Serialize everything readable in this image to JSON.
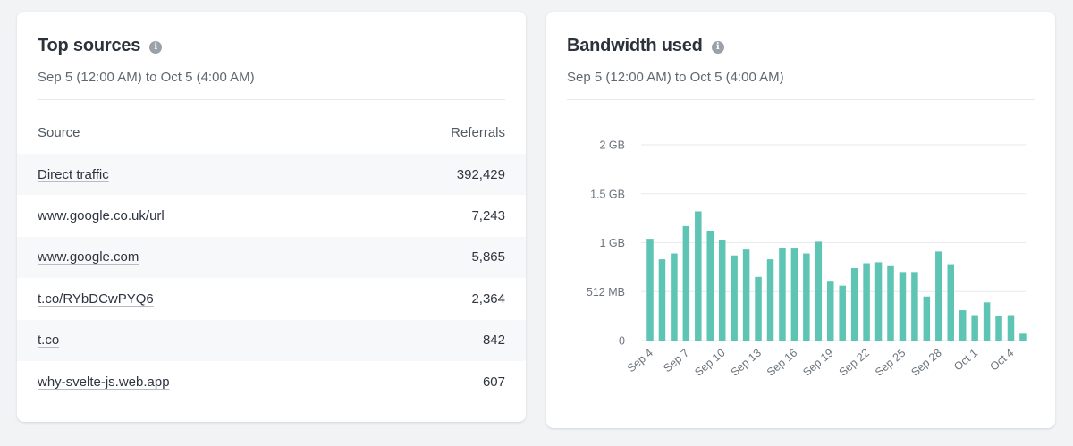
{
  "sources_card": {
    "title": "Top sources",
    "info_icon": "info-icon",
    "date_range": "Sep 5 (12:00 AM) to Oct 5 (4:00 AM)",
    "column_source": "Source",
    "column_referrals": "Referrals",
    "rows": [
      {
        "source": "Direct traffic",
        "referrals": "392,429"
      },
      {
        "source": "www.google.co.uk/url",
        "referrals": "7,243"
      },
      {
        "source": "www.google.com",
        "referrals": "5,865"
      },
      {
        "source": "t.co/RYbDCwPYQ6",
        "referrals": "2,364"
      },
      {
        "source": "t.co",
        "referrals": "842"
      },
      {
        "source": "why-svelte-js.web.app",
        "referrals": "607"
      }
    ]
  },
  "bandwidth_card": {
    "title": "Bandwidth used",
    "info_icon": "info-icon",
    "date_range": "Sep 5 (12:00 AM) to Oct 5 (4:00 AM)"
  },
  "colors": {
    "bar": "#5ec4b4",
    "grid": "#e8eaed"
  },
  "chart_data": {
    "type": "bar",
    "title": "Bandwidth used",
    "xlabel": "",
    "ylabel": "",
    "unit": "GB",
    "ylim": [
      0,
      2
    ],
    "y_ticks": [
      {
        "value": 0,
        "label": "0"
      },
      {
        "value": 0.5,
        "label": "512 MB"
      },
      {
        "value": 1,
        "label": "1 GB"
      },
      {
        "value": 1.5,
        "label": "1.5 GB"
      },
      {
        "value": 2,
        "label": "2 GB"
      }
    ],
    "grid": true,
    "categories": [
      "Sep 4",
      "Sep 5",
      "Sep 6",
      "Sep 7",
      "Sep 8",
      "Sep 9",
      "Sep 10",
      "Sep 11",
      "Sep 12",
      "Sep 13",
      "Sep 14",
      "Sep 15",
      "Sep 16",
      "Sep 17",
      "Sep 18",
      "Sep 19",
      "Sep 20",
      "Sep 21",
      "Sep 22",
      "Sep 23",
      "Sep 24",
      "Sep 25",
      "Sep 26",
      "Sep 27",
      "Sep 28",
      "Sep 29",
      "Sep 30",
      "Oct 1",
      "Oct 2",
      "Oct 3",
      "Oct 4",
      "Oct 5"
    ],
    "values": [
      1.04,
      0.83,
      0.89,
      1.17,
      1.32,
      1.12,
      1.03,
      0.87,
      0.93,
      0.65,
      0.83,
      0.95,
      0.94,
      0.89,
      1.01,
      0.61,
      0.56,
      0.74,
      0.79,
      0.8,
      0.76,
      0.7,
      0.7,
      0.45,
      0.91,
      0.78,
      0.31,
      0.26,
      0.39,
      0.25,
      0.26,
      0.07
    ],
    "x_tick_labels": [
      "Sep 4",
      "Sep 7",
      "Sep 10",
      "Sep 13",
      "Sep 16",
      "Sep 19",
      "Sep 22",
      "Sep 25",
      "Sep 28",
      "Oct 1",
      "Oct 4"
    ],
    "x_tick_every": 3
  }
}
